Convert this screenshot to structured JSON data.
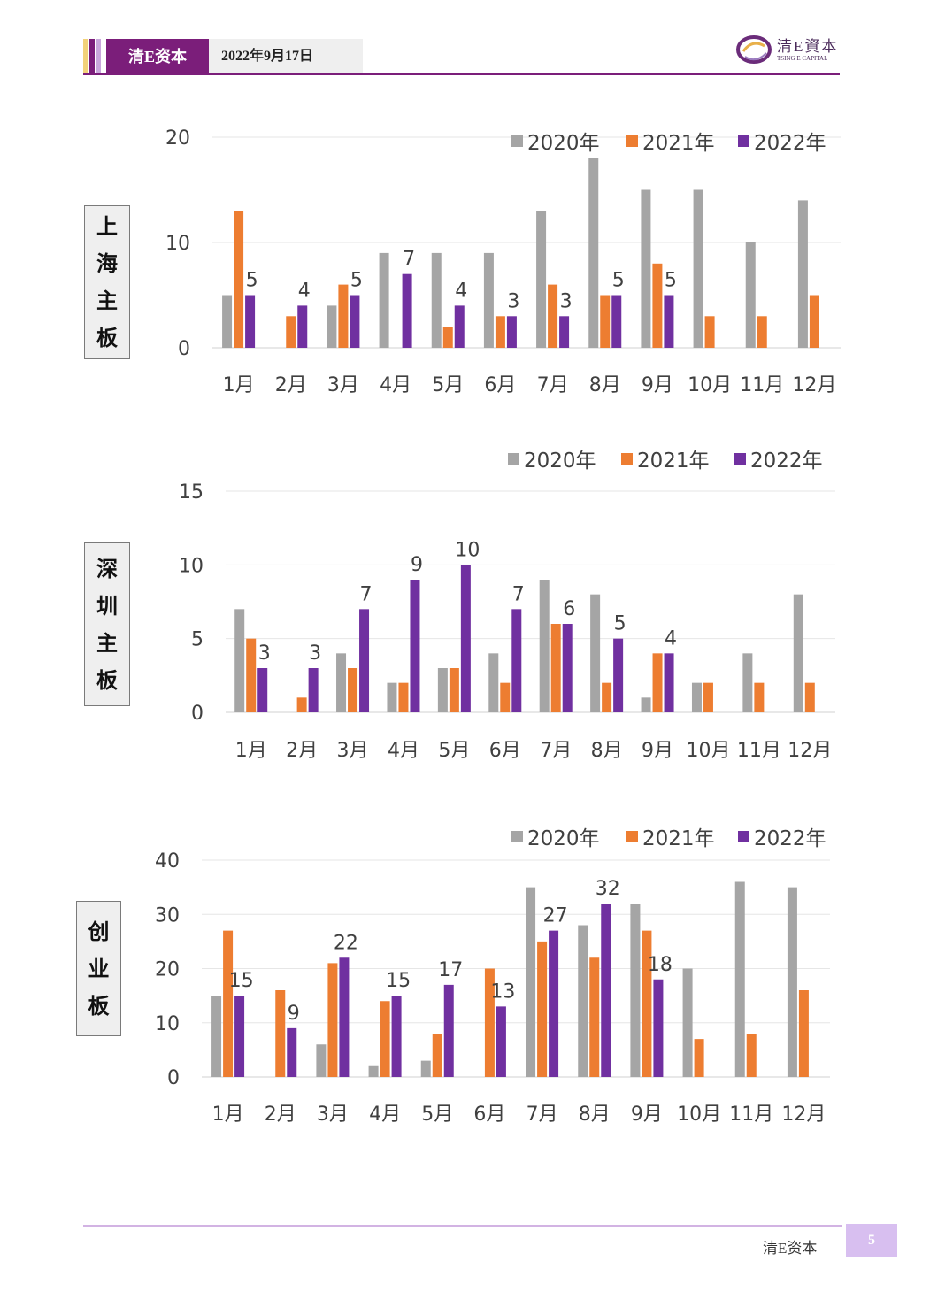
{
  "header": {
    "brand": "清E资本",
    "date": "2022年9月17日"
  },
  "logo": {
    "cn": "清E資本",
    "en": "TSING E CAPITAL"
  },
  "footer": {
    "brand": "清E资本",
    "page": "5"
  },
  "colors": {
    "s2020": "#A5A5A5",
    "s2021": "#ED7D31",
    "s2022": "#7030A0",
    "brand": "#7B1E7A"
  },
  "chart_data": [
    {
      "type": "bar",
      "label_chars": [
        "上",
        "海",
        "主",
        "板"
      ],
      "categories": [
        "1月",
        "2月",
        "3月",
        "4月",
        "5月",
        "6月",
        "7月",
        "8月",
        "9月",
        "10月",
        "11月",
        "12月"
      ],
      "ylim": [
        0,
        20
      ],
      "yticks": [
        0,
        10,
        20
      ],
      "legend": "top-right",
      "grid": true,
      "series": [
        {
          "name": "2020年",
          "color": "#A5A5A5",
          "values": [
            5,
            0,
            4,
            9,
            9,
            9,
            13,
            18,
            15,
            15,
            10,
            14
          ]
        },
        {
          "name": "2021年",
          "color": "#ED7D31",
          "values": [
            13,
            3,
            6,
            0,
            2,
            3,
            6,
            5,
            8,
            3,
            3,
            5
          ]
        },
        {
          "name": "2022年",
          "color": "#7030A0",
          "values": [
            5,
            4,
            5,
            7,
            4,
            3,
            3,
            5,
            5,
            null,
            null,
            null
          ],
          "labels": true
        }
      ]
    },
    {
      "type": "bar",
      "label_chars": [
        "深",
        "圳",
        "主",
        "板"
      ],
      "categories": [
        "1月",
        "2月",
        "3月",
        "4月",
        "5月",
        "6月",
        "7月",
        "8月",
        "9月",
        "10月",
        "11月",
        "12月"
      ],
      "ylim": [
        0,
        15
      ],
      "yticks": [
        0,
        5,
        10,
        15
      ],
      "legend": "top-right",
      "grid": true,
      "series": [
        {
          "name": "2020年",
          "color": "#A5A5A5",
          "values": [
            7,
            0,
            4,
            2,
            3,
            4,
            9,
            8,
            1,
            2,
            4,
            8
          ]
        },
        {
          "name": "2021年",
          "color": "#ED7D31",
          "values": [
            5,
            1,
            3,
            2,
            3,
            2,
            6,
            2,
            4,
            2,
            2,
            2
          ]
        },
        {
          "name": "2022年",
          "color": "#7030A0",
          "values": [
            3,
            3,
            7,
            9,
            10,
            7,
            6,
            5,
            4,
            null,
            null,
            null
          ],
          "labels": true
        }
      ]
    },
    {
      "type": "bar",
      "label_chars": [
        "创",
        "业",
        "板"
      ],
      "categories": [
        "1月",
        "2月",
        "3月",
        "4月",
        "5月",
        "6月",
        "7月",
        "8月",
        "9月",
        "10月",
        "11月",
        "12月"
      ],
      "ylim": [
        0,
        40
      ],
      "yticks": [
        0,
        10,
        20,
        30,
        40
      ],
      "legend": "top-right",
      "grid": true,
      "series": [
        {
          "name": "2020年",
          "color": "#A5A5A5",
          "values": [
            15,
            0,
            6,
            2,
            3,
            0,
            35,
            28,
            32,
            20,
            36,
            35
          ]
        },
        {
          "name": "2021年",
          "color": "#ED7D31",
          "values": [
            27,
            16,
            21,
            14,
            8,
            20,
            25,
            22,
            27,
            7,
            8,
            16
          ]
        },
        {
          "name": "2022年",
          "color": "#7030A0",
          "values": [
            15,
            9,
            22,
            15,
            17,
            13,
            27,
            32,
            18,
            null,
            null,
            null
          ],
          "labels": true
        }
      ]
    }
  ]
}
